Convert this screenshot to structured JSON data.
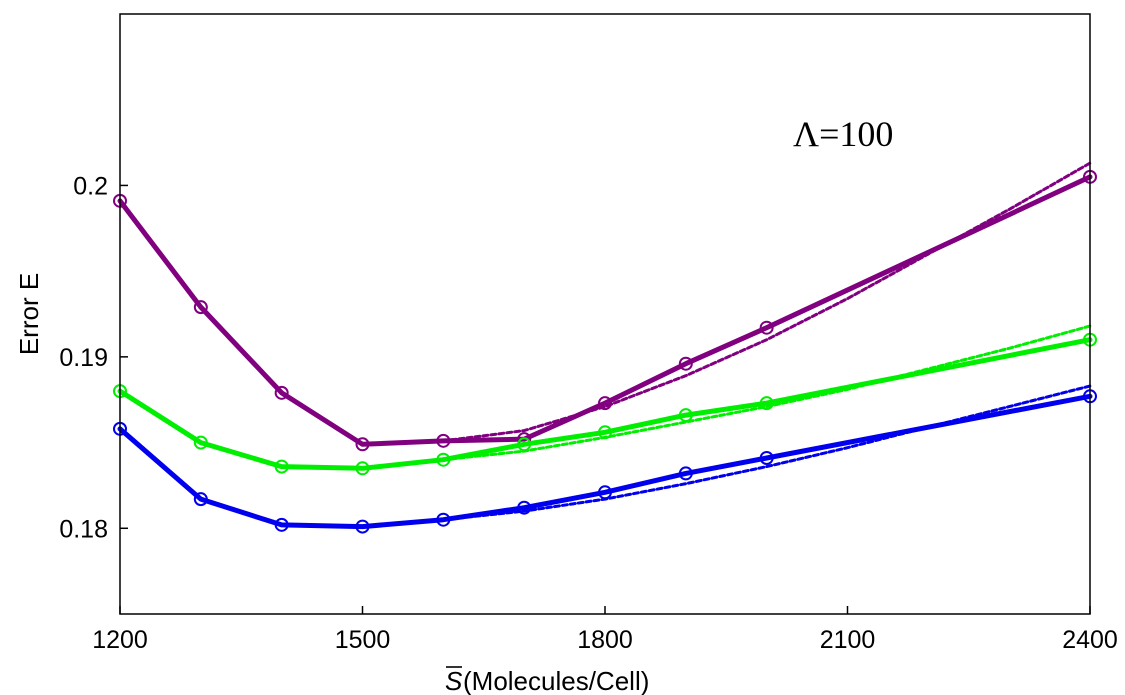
{
  "chart_data": {
    "type": "line",
    "title": "",
    "xlabel": "(Molecules/Cell)",
    "xlabel_symbol": "S",
    "ylabel": "Error E",
    "annotation": "Λ=100",
    "xlim": [
      1200,
      2400
    ],
    "ylim": [
      0.175,
      0.21
    ],
    "xticks": [
      1200,
      1500,
      1800,
      2100,
      2400
    ],
    "xtick_labels": [
      "1200",
      "1500",
      "1800",
      "2100",
      "2400"
    ],
    "yticks": [
      0.18,
      0.19,
      0.2
    ],
    "ytick_labels": [
      "0.18",
      "0.19",
      "0.2"
    ],
    "grid": false,
    "series": [
      {
        "color": "#800080",
        "style": "solid-markers",
        "x": [
          1200,
          1300,
          1400,
          1500,
          1600,
          1700,
          1800,
          1900,
          2000,
          2400
        ],
        "y": [
          0.1991,
          0.1929,
          0.1879,
          0.1849,
          0.1851,
          0.1852,
          0.1873,
          0.1896,
          0.1917,
          0.2005
        ]
      },
      {
        "color": "#800080",
        "style": "dashed",
        "x": [
          1600,
          1700,
          1800,
          1900,
          2000,
          2100,
          2200,
          2300,
          2400
        ],
        "y": [
          0.1851,
          0.1857,
          0.1871,
          0.1889,
          0.191,
          0.1934,
          0.196,
          0.1986,
          0.2013
        ]
      },
      {
        "color": "#00ee00",
        "style": "solid-markers",
        "x": [
          1200,
          1300,
          1400,
          1500,
          1600,
          1700,
          1800,
          1900,
          2000,
          2400
        ],
        "y": [
          0.188,
          0.185,
          0.1836,
          0.1835,
          0.184,
          0.1849,
          0.1856,
          0.1866,
          0.1873,
          0.191
        ]
      },
      {
        "color": "#00ee00",
        "style": "dashed",
        "x": [
          1600,
          1700,
          1800,
          1900,
          2000,
          2100,
          2200,
          2300,
          2400
        ],
        "y": [
          0.184,
          0.1845,
          0.1853,
          0.1862,
          0.1871,
          0.1881,
          0.1893,
          0.1905,
          0.1918
        ]
      },
      {
        "color": "#0000ee",
        "style": "solid-markers",
        "x": [
          1200,
          1300,
          1400,
          1500,
          1600,
          1700,
          1800,
          1900,
          2000,
          2400
        ],
        "y": [
          0.1858,
          0.1817,
          0.1802,
          0.1801,
          0.1805,
          0.1812,
          0.1821,
          0.1832,
          0.1841,
          0.1877
        ]
      },
      {
        "color": "#0000ee",
        "style": "dashed",
        "x": [
          1600,
          1700,
          1800,
          1900,
          2000,
          2100,
          2200,
          2300,
          2400
        ],
        "y": [
          0.1805,
          0.181,
          0.1817,
          0.1826,
          0.1836,
          0.1847,
          0.1859,
          0.1871,
          0.1883
        ]
      }
    ]
  }
}
